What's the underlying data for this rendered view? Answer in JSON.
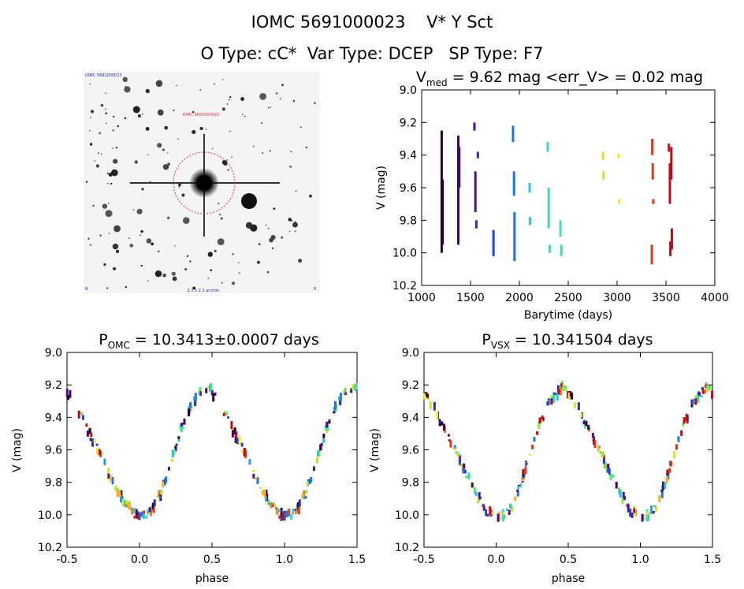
{
  "header": {
    "line1": "IOMC 5691000023    V* Y Sct",
    "line2": "O Type: cC*  Var Type: DCEP   SP Type: F7"
  },
  "finder_chart": {
    "label_top_left": "IOMC 5691000023",
    "label_target": "IOMC 5691000023",
    "label_bottom_center": "2.1 x 2.1 arcmin",
    "label_bottom_left": "N",
    "label_bottom_right": "E"
  },
  "colors": {
    "palette": [
      "#2a0030",
      "#3d0a5e",
      "#4b148a",
      "#3a2aa8",
      "#1f46c8",
      "#1f74de",
      "#22a0de",
      "#2cc4d8",
      "#3fd6c2",
      "#48e0a0",
      "#5ee06a",
      "#8ee63c",
      "#c6e82e",
      "#f2e62e",
      "#f4b628",
      "#ee7a1e",
      "#e0381a",
      "#b8101a"
    ],
    "finder_circle": "#e03030",
    "axis": "#000000"
  },
  "chart_data": [
    {
      "type": "scatter",
      "panel": "lightcurve",
      "title_main": "V",
      "title_sub": "med",
      "title_rest": " = 9.62 mag <err_V> = 0.02 mag",
      "xlabel": "Barytime (days)",
      "ylabel": "V (mag)",
      "xlim": [
        1000,
        4000
      ],
      "ylim": [
        10.2,
        9.0
      ],
      "y_inverted": true,
      "x_ticks": [
        "1000",
        "1500",
        "2000",
        "2500",
        "3000",
        "3500",
        "4000"
      ],
      "y_ticks": [
        "9.0",
        "9.2",
        "9.4",
        "9.6",
        "9.8",
        "10.0",
        "10.2"
      ],
      "segments": [
        {
          "x": 1205,
          "y": [
            9.25,
            10.0
          ]
        },
        {
          "x": 1215,
          "y": [
            9.55,
            9.95
          ]
        },
        {
          "x": 1375,
          "y": [
            9.28,
            9.95
          ]
        },
        {
          "x": 1385,
          "y": [
            9.35,
            9.6
          ]
        },
        {
          "x": 1540,
          "y": [
            9.2,
            9.25
          ]
        },
        {
          "x": 1550,
          "y": [
            9.5,
            9.75
          ]
        },
        {
          "x": 1560,
          "y": [
            9.8,
            9.85
          ]
        },
        {
          "x": 1575,
          "y": [
            9.38,
            9.42
          ]
        },
        {
          "x": 1735,
          "y": [
            9.86,
            10.02
          ]
        },
        {
          "x": 1935,
          "y": [
            9.22,
            9.32
          ]
        },
        {
          "x": 1945,
          "y": [
            9.5,
            9.65
          ]
        },
        {
          "x": 1950,
          "y": [
            9.75,
            10.05
          ]
        },
        {
          "x": 2105,
          "y": [
            9.57,
            9.63
          ]
        },
        {
          "x": 2110,
          "y": [
            9.78,
            9.83
          ]
        },
        {
          "x": 2290,
          "y": [
            9.32,
            9.38
          ]
        },
        {
          "x": 2300,
          "y": [
            9.6,
            9.85
          ]
        },
        {
          "x": 2310,
          "y": [
            9.95,
            10.0
          ]
        },
        {
          "x": 2420,
          "y": [
            9.8,
            9.9
          ]
        },
        {
          "x": 2430,
          "y": [
            9.95,
            10.02
          ]
        },
        {
          "x": 2855,
          "y": [
            9.38,
            9.43
          ]
        },
        {
          "x": 2860,
          "y": [
            9.5,
            9.55
          ]
        },
        {
          "x": 3015,
          "y": [
            9.39,
            9.42
          ]
        },
        {
          "x": 3020,
          "y": [
            9.67,
            9.7
          ]
        },
        {
          "x": 3360,
          "y": [
            9.3,
            9.4
          ]
        },
        {
          "x": 3365,
          "y": [
            9.45,
            9.55
          ]
        },
        {
          "x": 3370,
          "y": [
            9.67,
            9.7
          ]
        },
        {
          "x": 3355,
          "y": [
            9.95,
            10.07
          ]
        },
        {
          "x": 3530,
          "y": [
            9.33,
            9.38
          ]
        },
        {
          "x": 3540,
          "y": [
            9.45,
            9.7
          ]
        },
        {
          "x": 3545,
          "y": [
            9.93,
            10.02
          ]
        },
        {
          "x": 3555,
          "y": [
            9.35,
            9.55
          ]
        },
        {
          "x": 3560,
          "y": [
            9.85,
            9.98
          ]
        }
      ]
    },
    {
      "type": "scatter",
      "panel": "phase_omc",
      "title_main": "P",
      "title_sub": "OMC",
      "title_rest": " = 10.3413±0.0007 days",
      "xlabel": "phase",
      "ylabel": "V (mag)",
      "xlim": [
        -0.5,
        1.5
      ],
      "ylim": [
        10.2,
        9.0
      ],
      "y_inverted": true,
      "x_ticks": [
        "-0.5",
        "0.0",
        "0.5",
        "1.0",
        "1.5"
      ],
      "y_ticks": [
        "9.0",
        "9.2",
        "9.4",
        "9.6",
        "9.8",
        "10.0",
        "10.2"
      ],
      "period_days": 10.3413,
      "template": {
        "phase": [
          0.0,
          0.05,
          0.1,
          0.15,
          0.2,
          0.25,
          0.3,
          0.35,
          0.4,
          0.45,
          0.48,
          0.5,
          0.55,
          0.6,
          0.65,
          0.7,
          0.75,
          0.8,
          0.85,
          0.9,
          0.95,
          1.0
        ],
        "mag": [
          10.02,
          10.0,
          9.96,
          9.86,
          9.72,
          9.58,
          9.44,
          9.34,
          9.27,
          9.22,
          9.21,
          9.24,
          9.31,
          9.4,
          9.49,
          9.58,
          9.67,
          9.76,
          9.85,
          9.93,
          9.99,
          10.02
        ]
      }
    },
    {
      "type": "scatter",
      "panel": "phase_vsx",
      "title_main": "P",
      "title_sub": "VSX",
      "title_rest": " = 10.341504 days",
      "xlabel": "phase",
      "ylabel": "V (mag)",
      "xlim": [
        -0.5,
        1.5
      ],
      "ylim": [
        10.2,
        9.0
      ],
      "y_inverted": true,
      "x_ticks": [
        "-0.5",
        "0.0",
        "0.5",
        "1.0",
        "1.5"
      ],
      "y_ticks": [
        "9.0",
        "9.2",
        "9.4",
        "9.6",
        "9.8",
        "10.0",
        "10.2"
      ],
      "period_days": 10.341504,
      "template": {
        "phase": [
          0.0,
          0.05,
          0.1,
          0.15,
          0.2,
          0.25,
          0.3,
          0.35,
          0.4,
          0.45,
          0.48,
          0.5,
          0.55,
          0.6,
          0.65,
          0.7,
          0.75,
          0.8,
          0.85,
          0.9,
          0.95,
          1.0
        ],
        "mag": [
          10.02,
          10.0,
          9.96,
          9.86,
          9.72,
          9.58,
          9.44,
          9.34,
          9.27,
          9.22,
          9.21,
          9.24,
          9.31,
          9.4,
          9.49,
          9.58,
          9.67,
          9.76,
          9.85,
          9.93,
          9.99,
          10.02
        ]
      }
    }
  ]
}
